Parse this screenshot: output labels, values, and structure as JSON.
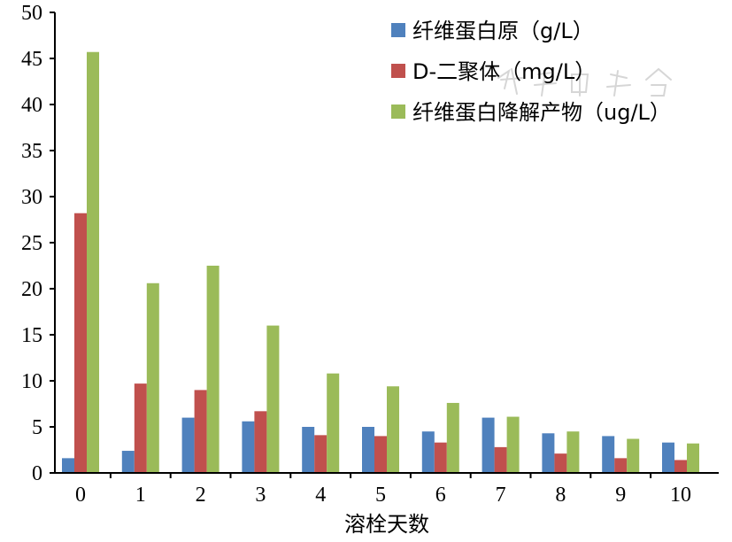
{
  "chart_data": {
    "type": "bar",
    "categories": [
      "0",
      "1",
      "2",
      "3",
      "4",
      "5",
      "6",
      "7",
      "8",
      "9",
      "10"
    ],
    "series": [
      {
        "name": "纤维蛋白原（g/L）",
        "color": "#4f81bd",
        "values": [
          1.6,
          2.4,
          6.0,
          5.6,
          5.0,
          5.0,
          4.5,
          6.0,
          4.3,
          4.0,
          3.3
        ]
      },
      {
        "name": "D-二聚体（mg/L）",
        "color": "#c0504d",
        "values": [
          28.2,
          9.7,
          9.0,
          6.7,
          4.1,
          4.0,
          3.3,
          2.8,
          2.1,
          1.6,
          1.4
        ]
      },
      {
        "name": "纤维蛋白降解产物（ug/L）",
        "color": "#9bbb59",
        "values": [
          45.7,
          20.6,
          22.5,
          16.0,
          10.8,
          9.4,
          7.6,
          6.1,
          4.5,
          3.7,
          3.2
        ]
      }
    ],
    "xlabel": "溶栓天数",
    "ylabel": "",
    "ylim": [
      0,
      50
    ],
    "yticks": [
      0,
      5,
      10,
      15,
      20,
      25,
      30,
      35,
      40,
      45,
      50
    ],
    "legend_position": "top-right",
    "grid": false
  }
}
